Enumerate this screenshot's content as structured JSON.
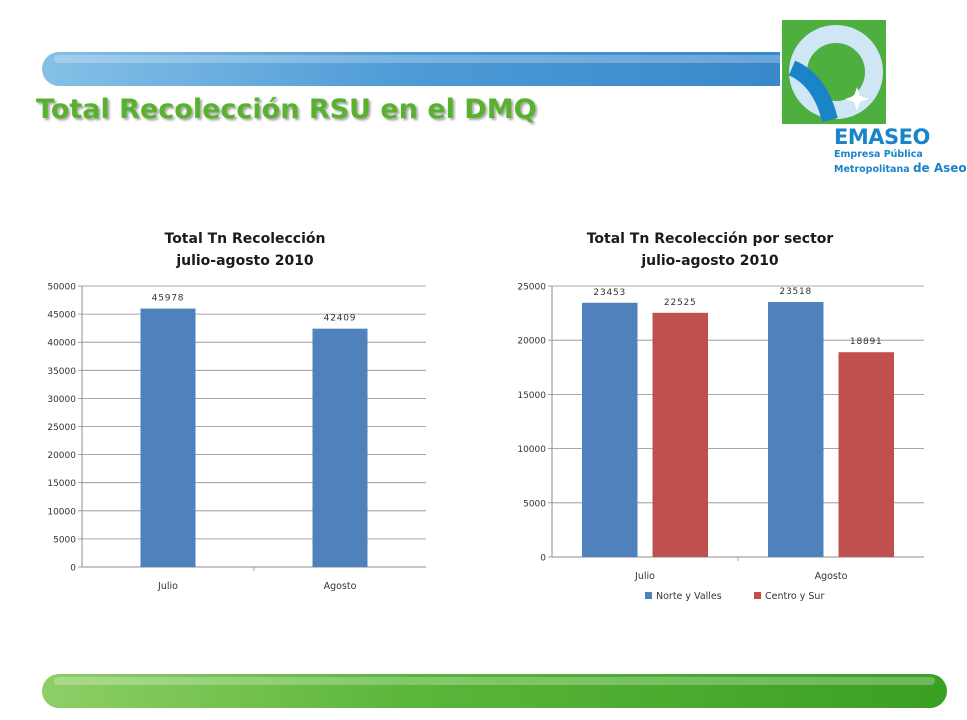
{
  "slide": {
    "title": "Total Recolección RSU en el DMQ"
  },
  "logo": {
    "name": "EMASEO",
    "subtitle_line1": "Empresa Pública",
    "subtitle_line2": "Metropolitana",
    "subtitle_emph": "de Aseo",
    "colors": {
      "green": "#4caf3e",
      "blue": "#1a84c9",
      "light_blue": "#cfe6f5"
    }
  },
  "colors": {
    "title_green": "#59b22e",
    "band_blue": "#4e9bd6",
    "band_green": "#5bb63a",
    "series_blue": "#4f81bd",
    "series_red": "#c0504d"
  },
  "chart_data": [
    {
      "type": "bar",
      "title": "Total Tn Recolección",
      "subtitle": "julio-agosto 2010",
      "categories": [
        "Julio",
        "Agosto"
      ],
      "series": [
        {
          "values": [
            45978,
            42409
          ],
          "color": "#4f81bd"
        }
      ],
      "data_labels": [
        "45978",
        "42409"
      ],
      "ylim": [
        0,
        50000
      ],
      "yticks": [
        0,
        5000,
        10000,
        15000,
        20000,
        25000,
        30000,
        35000,
        40000,
        45000,
        50000
      ],
      "grid": true,
      "legend": "none"
    },
    {
      "type": "bar",
      "title": "Total Tn Recolección por sector",
      "subtitle": "julio-agosto 2010",
      "categories": [
        "Julio",
        "Agosto"
      ],
      "series": [
        {
          "name": "Norte y Valles",
          "values": [
            23453,
            23518
          ],
          "color": "#4f81bd"
        },
        {
          "name": "Centro y Sur",
          "values": [
            22525,
            18891
          ],
          "color": "#c0504d"
        }
      ],
      "data_labels": [
        [
          "23453",
          "23518"
        ],
        [
          "22525",
          "18891"
        ]
      ],
      "ylim": [
        0,
        25000
      ],
      "yticks": [
        0,
        5000,
        10000,
        15000,
        20000,
        25000
      ],
      "grid": true,
      "legend": "bottom"
    }
  ]
}
